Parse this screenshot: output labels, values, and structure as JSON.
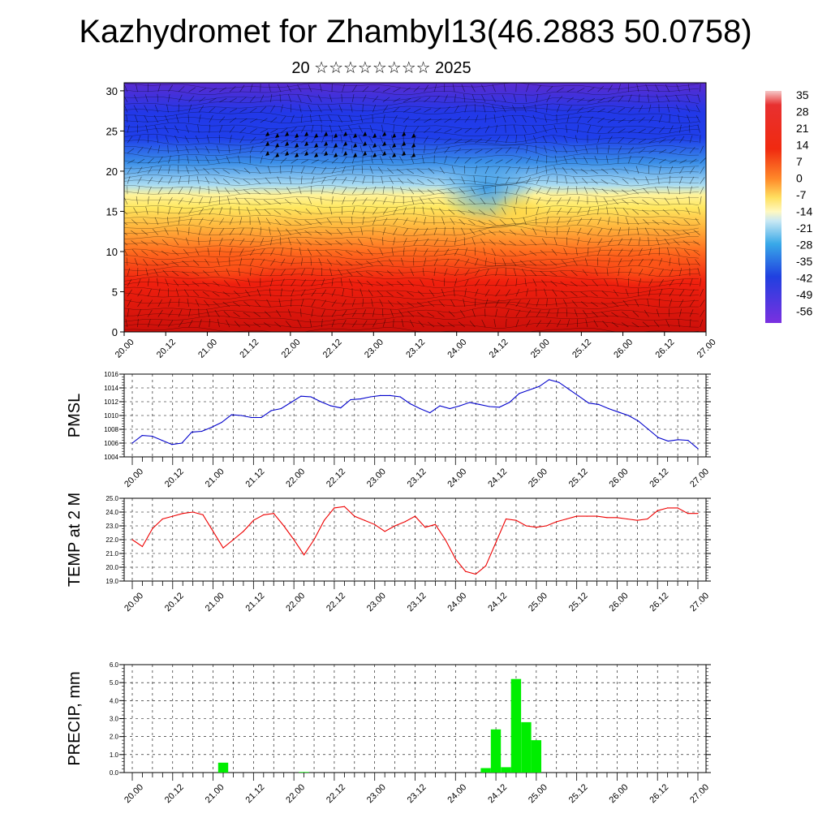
{
  "title": "Kazhydromet for Zhambyl13(46.2883 50.0758)",
  "subtitle": "20 ☆☆☆☆☆☆☆☆ 2025",
  "time_labels": [
    "20.00",
    "20.12",
    "21.00",
    "21.12",
    "22.00",
    "22.12",
    "23.00",
    "23.12",
    "24.00",
    "24.12",
    "25.00",
    "25.12",
    "26.00",
    "26.12",
    "27.00"
  ],
  "chart_data": [
    {
      "type": "heatmap",
      "description_var": "temperature cross-section with wind barbs",
      "y_ticks": [
        0,
        5,
        10,
        15,
        20,
        25,
        30
      ],
      "ylim": [
        0,
        31
      ],
      "colorbar_labels": [
        "35",
        "28",
        "21",
        "14",
        "7",
        "0",
        "-7",
        "-14",
        "-21",
        "-28",
        "-35",
        "-42",
        "-49",
        "-56"
      ],
      "colorbar_range": [
        -63,
        42
      ]
    },
    {
      "type": "line",
      "ylabel": "PMSL",
      "color": "#0000cc",
      "ylim": [
        1004,
        1016
      ],
      "y_ticks": [
        "1004",
        "1006",
        "1008",
        "1010",
        "1012",
        "1014",
        "1016"
      ],
      "values": [
        1006.0,
        1007.1,
        1007.0,
        1006.4,
        1005.8,
        1006.0,
        1007.6,
        1007.7,
        1008.3,
        1009.0,
        1010.1,
        1010.0,
        1009.7,
        1009.7,
        1010.7,
        1011.0,
        1011.9,
        1012.8,
        1012.7,
        1012.0,
        1011.4,
        1011.1,
        1012.3,
        1012.4,
        1012.7,
        1012.9,
        1012.9,
        1012.7,
        1011.7,
        1011.0,
        1010.4,
        1011.4,
        1011.0,
        1011.4,
        1011.9,
        1011.6,
        1011.3,
        1011.2,
        1011.9,
        1013.2,
        1013.7,
        1014.2,
        1015.2,
        1014.8,
        1013.8,
        1012.8,
        1011.8,
        1011.6,
        1011.0,
        1010.5,
        1010.0,
        1009.2,
        1008.0,
        1006.8,
        1006.3,
        1006.5,
        1006.4,
        1005.2
      ]
    },
    {
      "type": "line",
      "ylabel": "TEMP at 2 M",
      "color": "#ee0000",
      "ylim": [
        19.0,
        25.0
      ],
      "y_ticks": [
        "19.0",
        "20.0",
        "21.0",
        "22.0",
        "23.0",
        "24.0",
        "25.0"
      ],
      "values": [
        22.0,
        21.5,
        22.8,
        23.5,
        23.7,
        23.9,
        24.0,
        23.8,
        22.6,
        21.4,
        22.0,
        22.6,
        23.4,
        23.8,
        23.9,
        23.0,
        22.0,
        20.9,
        22.0,
        23.4,
        24.3,
        24.4,
        23.7,
        23.4,
        23.1,
        22.6,
        23.0,
        23.3,
        23.7,
        22.9,
        23.1,
        22.0,
        20.6,
        19.7,
        19.5,
        20.1,
        21.8,
        23.5,
        23.4,
        23.0,
        22.9,
        23.0,
        23.3,
        23.5,
        23.7,
        23.7,
        23.7,
        23.6,
        23.6,
        23.5,
        23.4,
        23.5,
        24.1,
        24.3,
        24.3,
        23.9,
        23.9
      ]
    },
    {
      "type": "bar",
      "ylabel": "PRECIP, mm",
      "color": "#00ee00",
      "ylim": [
        0.0,
        6.0
      ],
      "y_ticks": [
        "0.0",
        "1.0",
        "2.0",
        "3.0",
        "4.0",
        "5.0",
        "6.0"
      ],
      "values": [
        0,
        0,
        0,
        0,
        0,
        0,
        0,
        0,
        0,
        0.55,
        0,
        0,
        0,
        0,
        0,
        0,
        0,
        0.03,
        0,
        0,
        0,
        0,
        0,
        0,
        0,
        0,
        0,
        0,
        0,
        0,
        0,
        0,
        0,
        0,
        0,
        0.25,
        2.4,
        0.3,
        5.2,
        2.8,
        1.8,
        0,
        0,
        0,
        0,
        0,
        0,
        0,
        0,
        0,
        0,
        0,
        0,
        0,
        0,
        0,
        0
      ]
    }
  ]
}
